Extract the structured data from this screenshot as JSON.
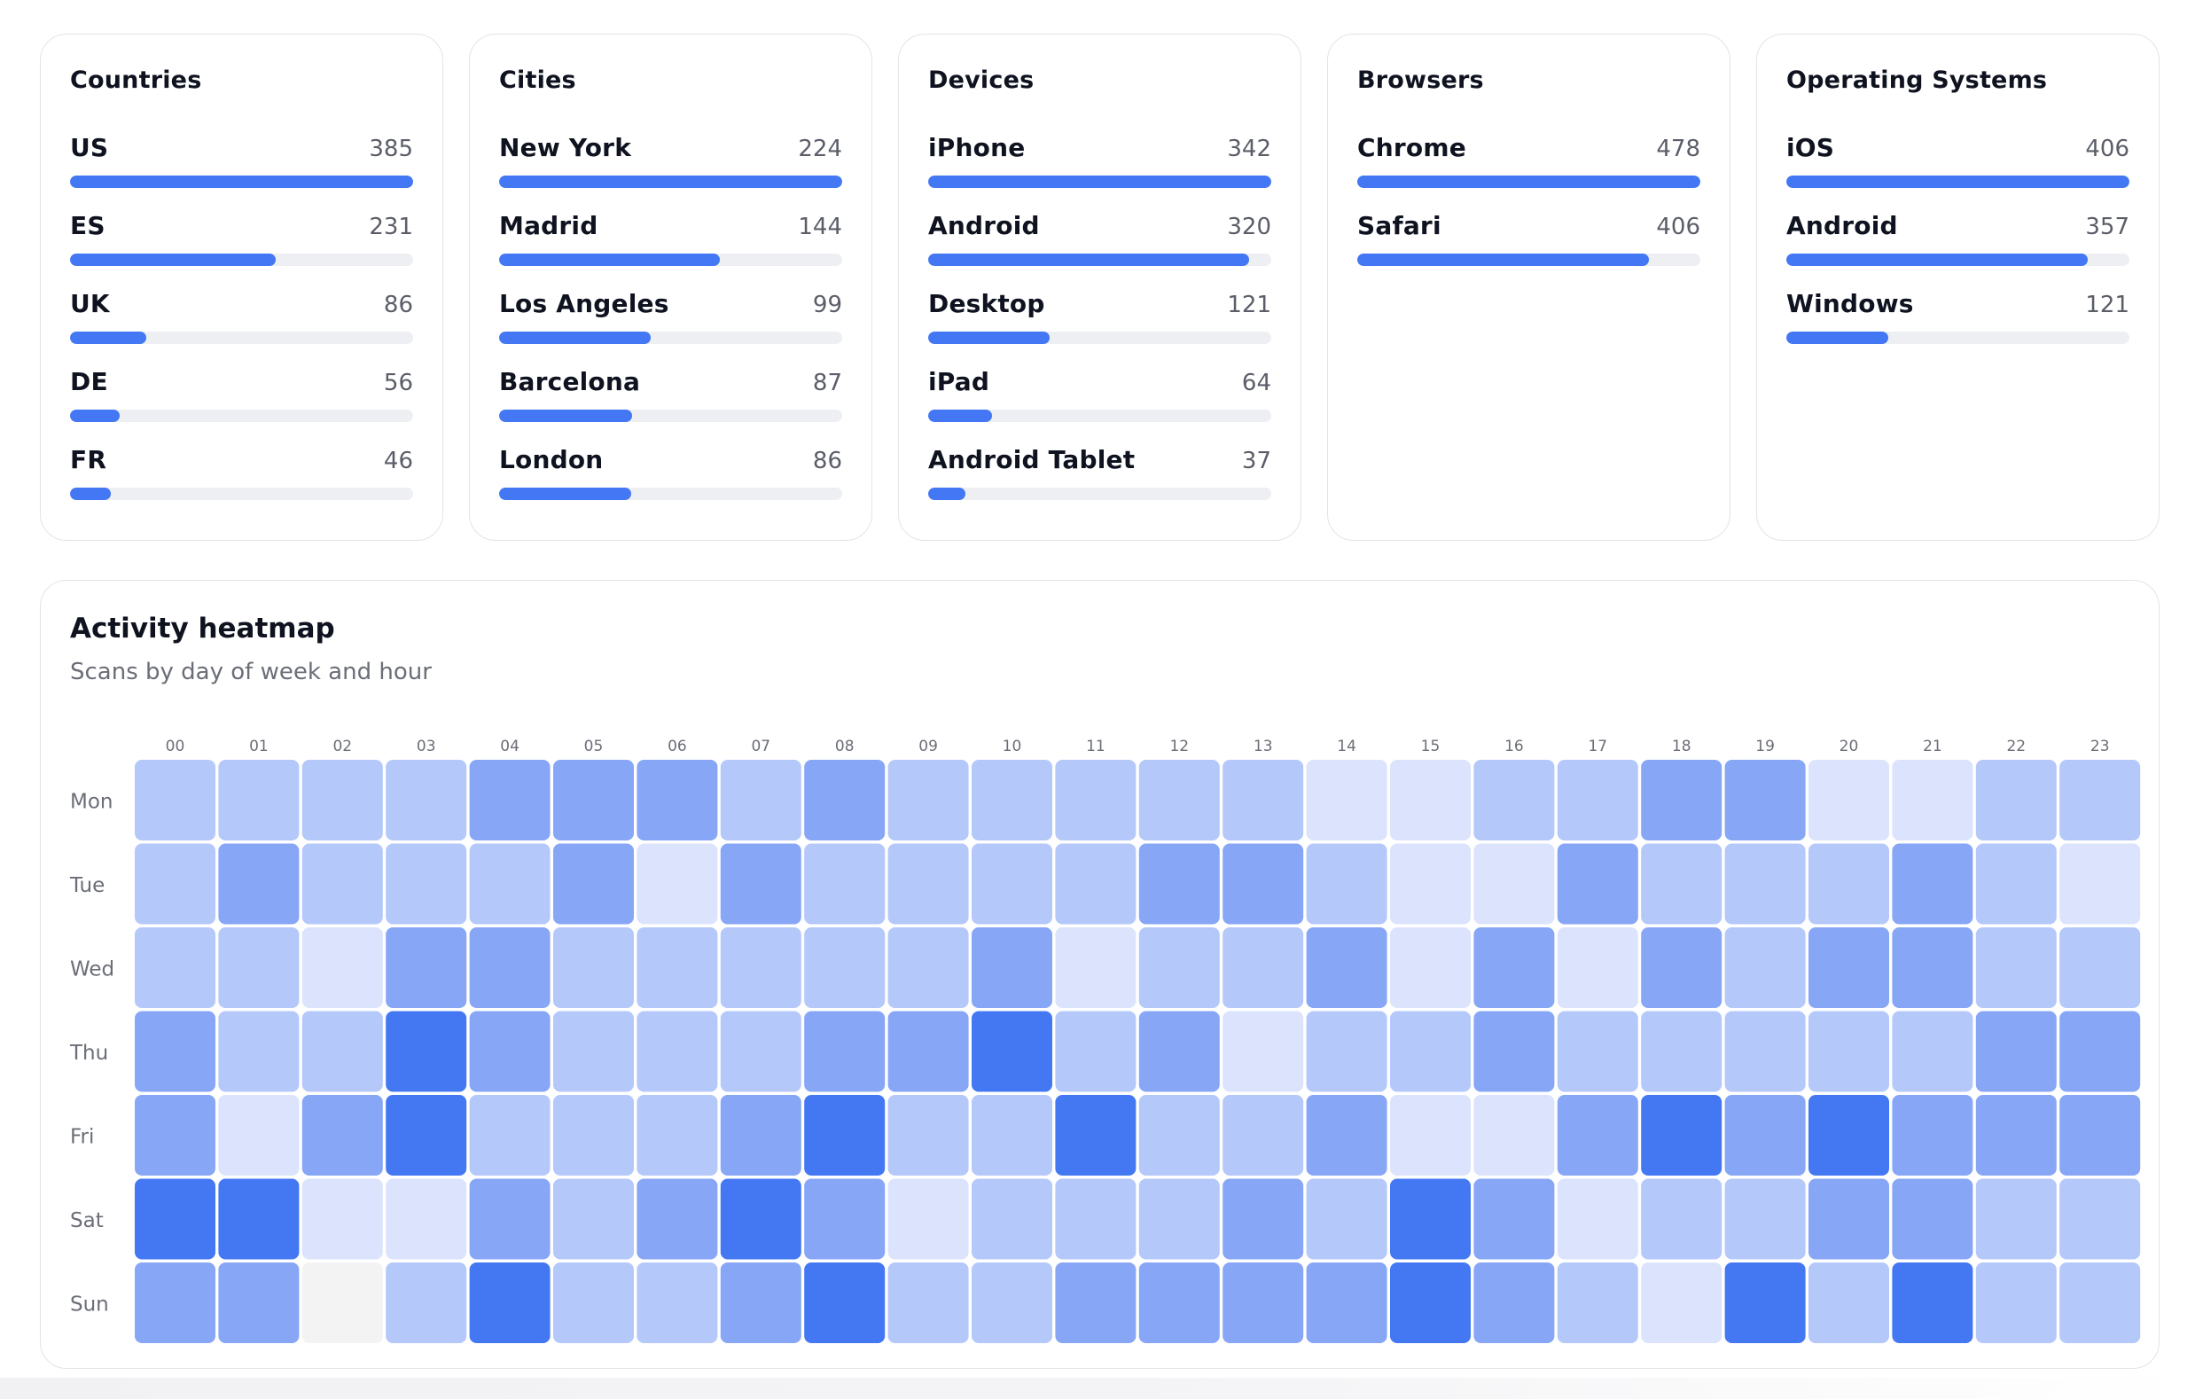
{
  "cards": [
    {
      "title": "Countries",
      "rows": [
        {
          "label": "US",
          "value": 385
        },
        {
          "label": "ES",
          "value": 231
        },
        {
          "label": "UK",
          "value": 86
        },
        {
          "label": "DE",
          "value": 56
        },
        {
          "label": "FR",
          "value": 46
        }
      ]
    },
    {
      "title": "Cities",
      "rows": [
        {
          "label": "New York",
          "value": 224
        },
        {
          "label": "Madrid",
          "value": 144
        },
        {
          "label": "Los Angeles",
          "value": 99
        },
        {
          "label": "Barcelona",
          "value": 87
        },
        {
          "label": "London",
          "value": 86
        }
      ]
    },
    {
      "title": "Devices",
      "rows": [
        {
          "label": "iPhone",
          "value": 342
        },
        {
          "label": "Android",
          "value": 320
        },
        {
          "label": "Desktop",
          "value": 121
        },
        {
          "label": "iPad",
          "value": 64
        },
        {
          "label": "Android Tablet",
          "value": 37
        }
      ]
    },
    {
      "title": "Browsers",
      "rows": [
        {
          "label": "Chrome",
          "value": 478
        },
        {
          "label": "Safari",
          "value": 406
        }
      ]
    },
    {
      "title": "Operating Systems",
      "rows": [
        {
          "label": "iOS",
          "value": 406
        },
        {
          "label": "Android",
          "value": 357
        },
        {
          "label": "Windows",
          "value": 121
        }
      ]
    }
  ],
  "heatmap": {
    "title": "Activity heatmap",
    "subtitle": "Scans by day of week and hour",
    "chart_data": {
      "type": "heatmap",
      "x": [
        "00",
        "01",
        "02",
        "03",
        "04",
        "05",
        "06",
        "07",
        "08",
        "09",
        "10",
        "11",
        "12",
        "13",
        "14",
        "15",
        "16",
        "17",
        "18",
        "19",
        "20",
        "21",
        "22",
        "23"
      ],
      "y": [
        "Mon",
        "Tue",
        "Wed",
        "Thu",
        "Fri",
        "Sat",
        "Sun"
      ],
      "values": [
        [
          1,
          1,
          1,
          1,
          2,
          2,
          2,
          1,
          2,
          1,
          1,
          1,
          1,
          1,
          0,
          0,
          1,
          1,
          2,
          2,
          0,
          0,
          1,
          1
        ],
        [
          1,
          2,
          1,
          1,
          1,
          2,
          0,
          2,
          1,
          1,
          1,
          1,
          2,
          2,
          1,
          0,
          0,
          2,
          1,
          1,
          1,
          2,
          1,
          0
        ],
        [
          1,
          1,
          0,
          2,
          2,
          1,
          1,
          1,
          1,
          1,
          2,
          0,
          1,
          1,
          2,
          0,
          2,
          0,
          2,
          1,
          2,
          2,
          1,
          1
        ],
        [
          2,
          1,
          1,
          3,
          2,
          1,
          1,
          1,
          2,
          2,
          3,
          1,
          2,
          0,
          1,
          1,
          2,
          1,
          1,
          1,
          1,
          1,
          2,
          2
        ],
        [
          2,
          0,
          2,
          3,
          1,
          1,
          1,
          2,
          3,
          1,
          1,
          3,
          1,
          1,
          2,
          0,
          0,
          2,
          3,
          2,
          3,
          2,
          2,
          2
        ],
        [
          3,
          3,
          0,
          0,
          2,
          1,
          2,
          3,
          2,
          0,
          1,
          1,
          1,
          2,
          1,
          3,
          2,
          0,
          1,
          1,
          2,
          2,
          1,
          1
        ],
        [
          2,
          2,
          -1,
          1,
          3,
          1,
          1,
          2,
          3,
          1,
          1,
          2,
          2,
          2,
          2,
          3,
          2,
          1,
          0,
          3,
          1,
          3,
          1,
          1
        ]
      ],
      "levels": {
        "-1": "#f3f3f4",
        "0": "#dbe4fc",
        "1": "#b4c8fa",
        "2": "#87a6f6",
        "3": "#4478f3"
      }
    }
  }
}
